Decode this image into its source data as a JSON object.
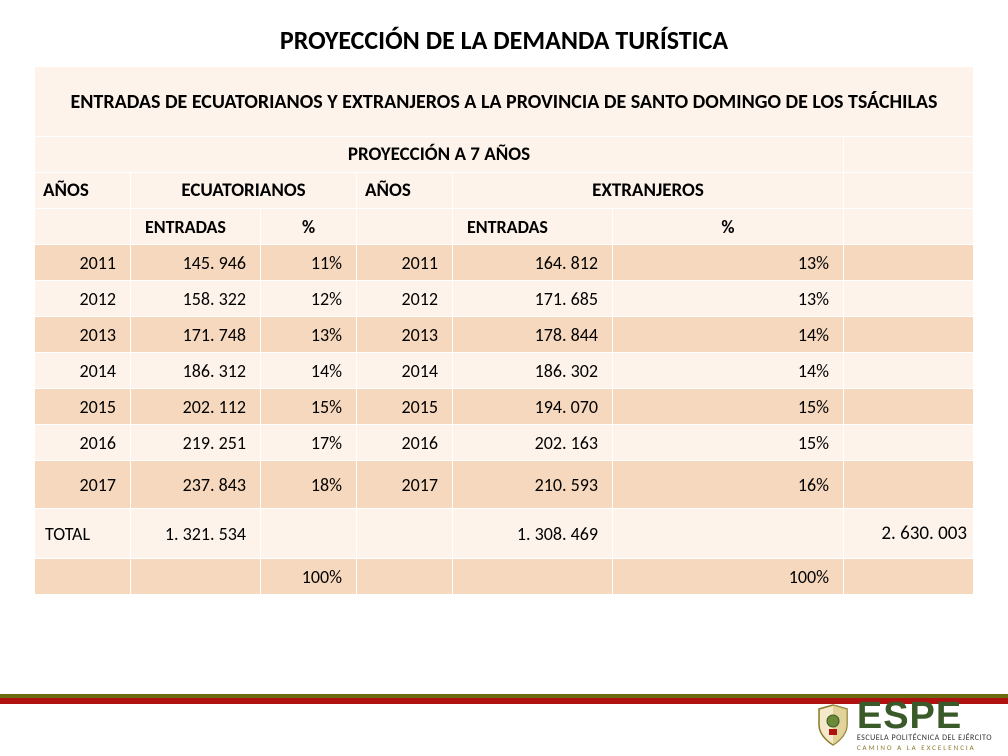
{
  "title": "PROYECCIÓN DE LA DEMANDA TURÍSTICA",
  "table": {
    "super_header": "ENTRADAS DE ECUATORIANOS Y EXTRANJEROS A LA PROVINCIA DE SANTO DOMINGO DE LOS TSÁCHILAS",
    "projection_header": "PROYECCIÓN A 7 AÑOS",
    "col_years_a": "AÑOS",
    "col_group_a": "ECUATORIANOS",
    "col_years_b": "AÑOS",
    "col_group_b": "EXTRANJEROS",
    "col_entries_a": "ENTRADAS",
    "col_pct_a": "%",
    "col_entries_b": "ENTRADAS",
    "col_pct_b": "%",
    "rows": [
      {
        "y1": "2011",
        "e1": "145. 946",
        "p1": "11%",
        "y2": "2011",
        "e2": "164. 812",
        "p2": "13%"
      },
      {
        "y1": "2012",
        "e1": "158. 322",
        "p1": "12%",
        "y2": "2012",
        "e2": "171. 685",
        "p2": "13%"
      },
      {
        "y1": "2013",
        "e1": "171. 748",
        "p1": "13%",
        "y2": "2013",
        "e2": "178. 844",
        "p2": "14%"
      },
      {
        "y1": "2014",
        "e1": "186. 312",
        "p1": "14%",
        "y2": "2014",
        "e2": "186. 302",
        "p2": "14%"
      },
      {
        "y1": "2015",
        "e1": "202. 112",
        "p1": "15%",
        "y2": "2015",
        "e2": "194. 070",
        "p2": "15%"
      },
      {
        "y1": "2016",
        "e1": "219. 251",
        "p1": "17%",
        "y2": "2016",
        "e2": "202. 163",
        "p2": "15%"
      },
      {
        "y1": "2017",
        "e1": "237. 843",
        "p1": "18%",
        "y2": "2017",
        "e2": "210. 593",
        "p2": "16%"
      }
    ],
    "total_label": "TOTAL",
    "total_e1": "1. 321. 534",
    "total_e2": "1. 308. 469",
    "grand_total": "2. 630. 003",
    "pct_100": "100%"
  },
  "logo": {
    "letters": [
      "E",
      "S",
      "P",
      "E"
    ],
    "line1": "ESCUELA POLITÉCNICA DEL EJÉRCITO",
    "line2": "CAMINO A LA EXCELENCIA"
  },
  "colors": {
    "row_alt_dark": "#f6d8be",
    "row_alt_light": "#fdf3eb",
    "border": "#ffffff",
    "bar_olive": "#6b6b12",
    "bar_red": "#b01111",
    "espe_green": "#3a5a2a"
  }
}
